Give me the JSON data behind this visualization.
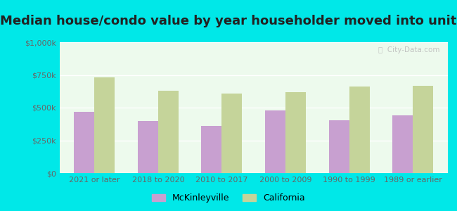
{
  "title": "Median house/condo value by year householder moved into unit",
  "categories": [
    "2021 or later",
    "2018 to 2020",
    "2010 to 2017",
    "2000 to 2009",
    "1990 to 1999",
    "1989 or earlier"
  ],
  "mckinleyville_values": [
    470000,
    400000,
    360000,
    480000,
    405000,
    440000
  ],
  "california_values": [
    730000,
    630000,
    610000,
    620000,
    660000,
    665000
  ],
  "mckinleyville_color": "#c8a0d0",
  "california_color": "#c5d49a",
  "background_outer": "#00e8e8",
  "background_inner": "#edfaed",
  "bar_width": 0.32,
  "ylim": [
    0,
    1000000
  ],
  "yticks": [
    0,
    250000,
    500000,
    750000,
    1000000
  ],
  "ytick_labels": [
    "$0",
    "$250k",
    "$500k",
    "$750k",
    "$1,000k"
  ],
  "legend_mckinleyville": "McKinleyville",
  "legend_california": "California",
  "watermark": "ⓘ  City-Data.com",
  "title_fontsize": 13,
  "tick_fontsize": 8
}
